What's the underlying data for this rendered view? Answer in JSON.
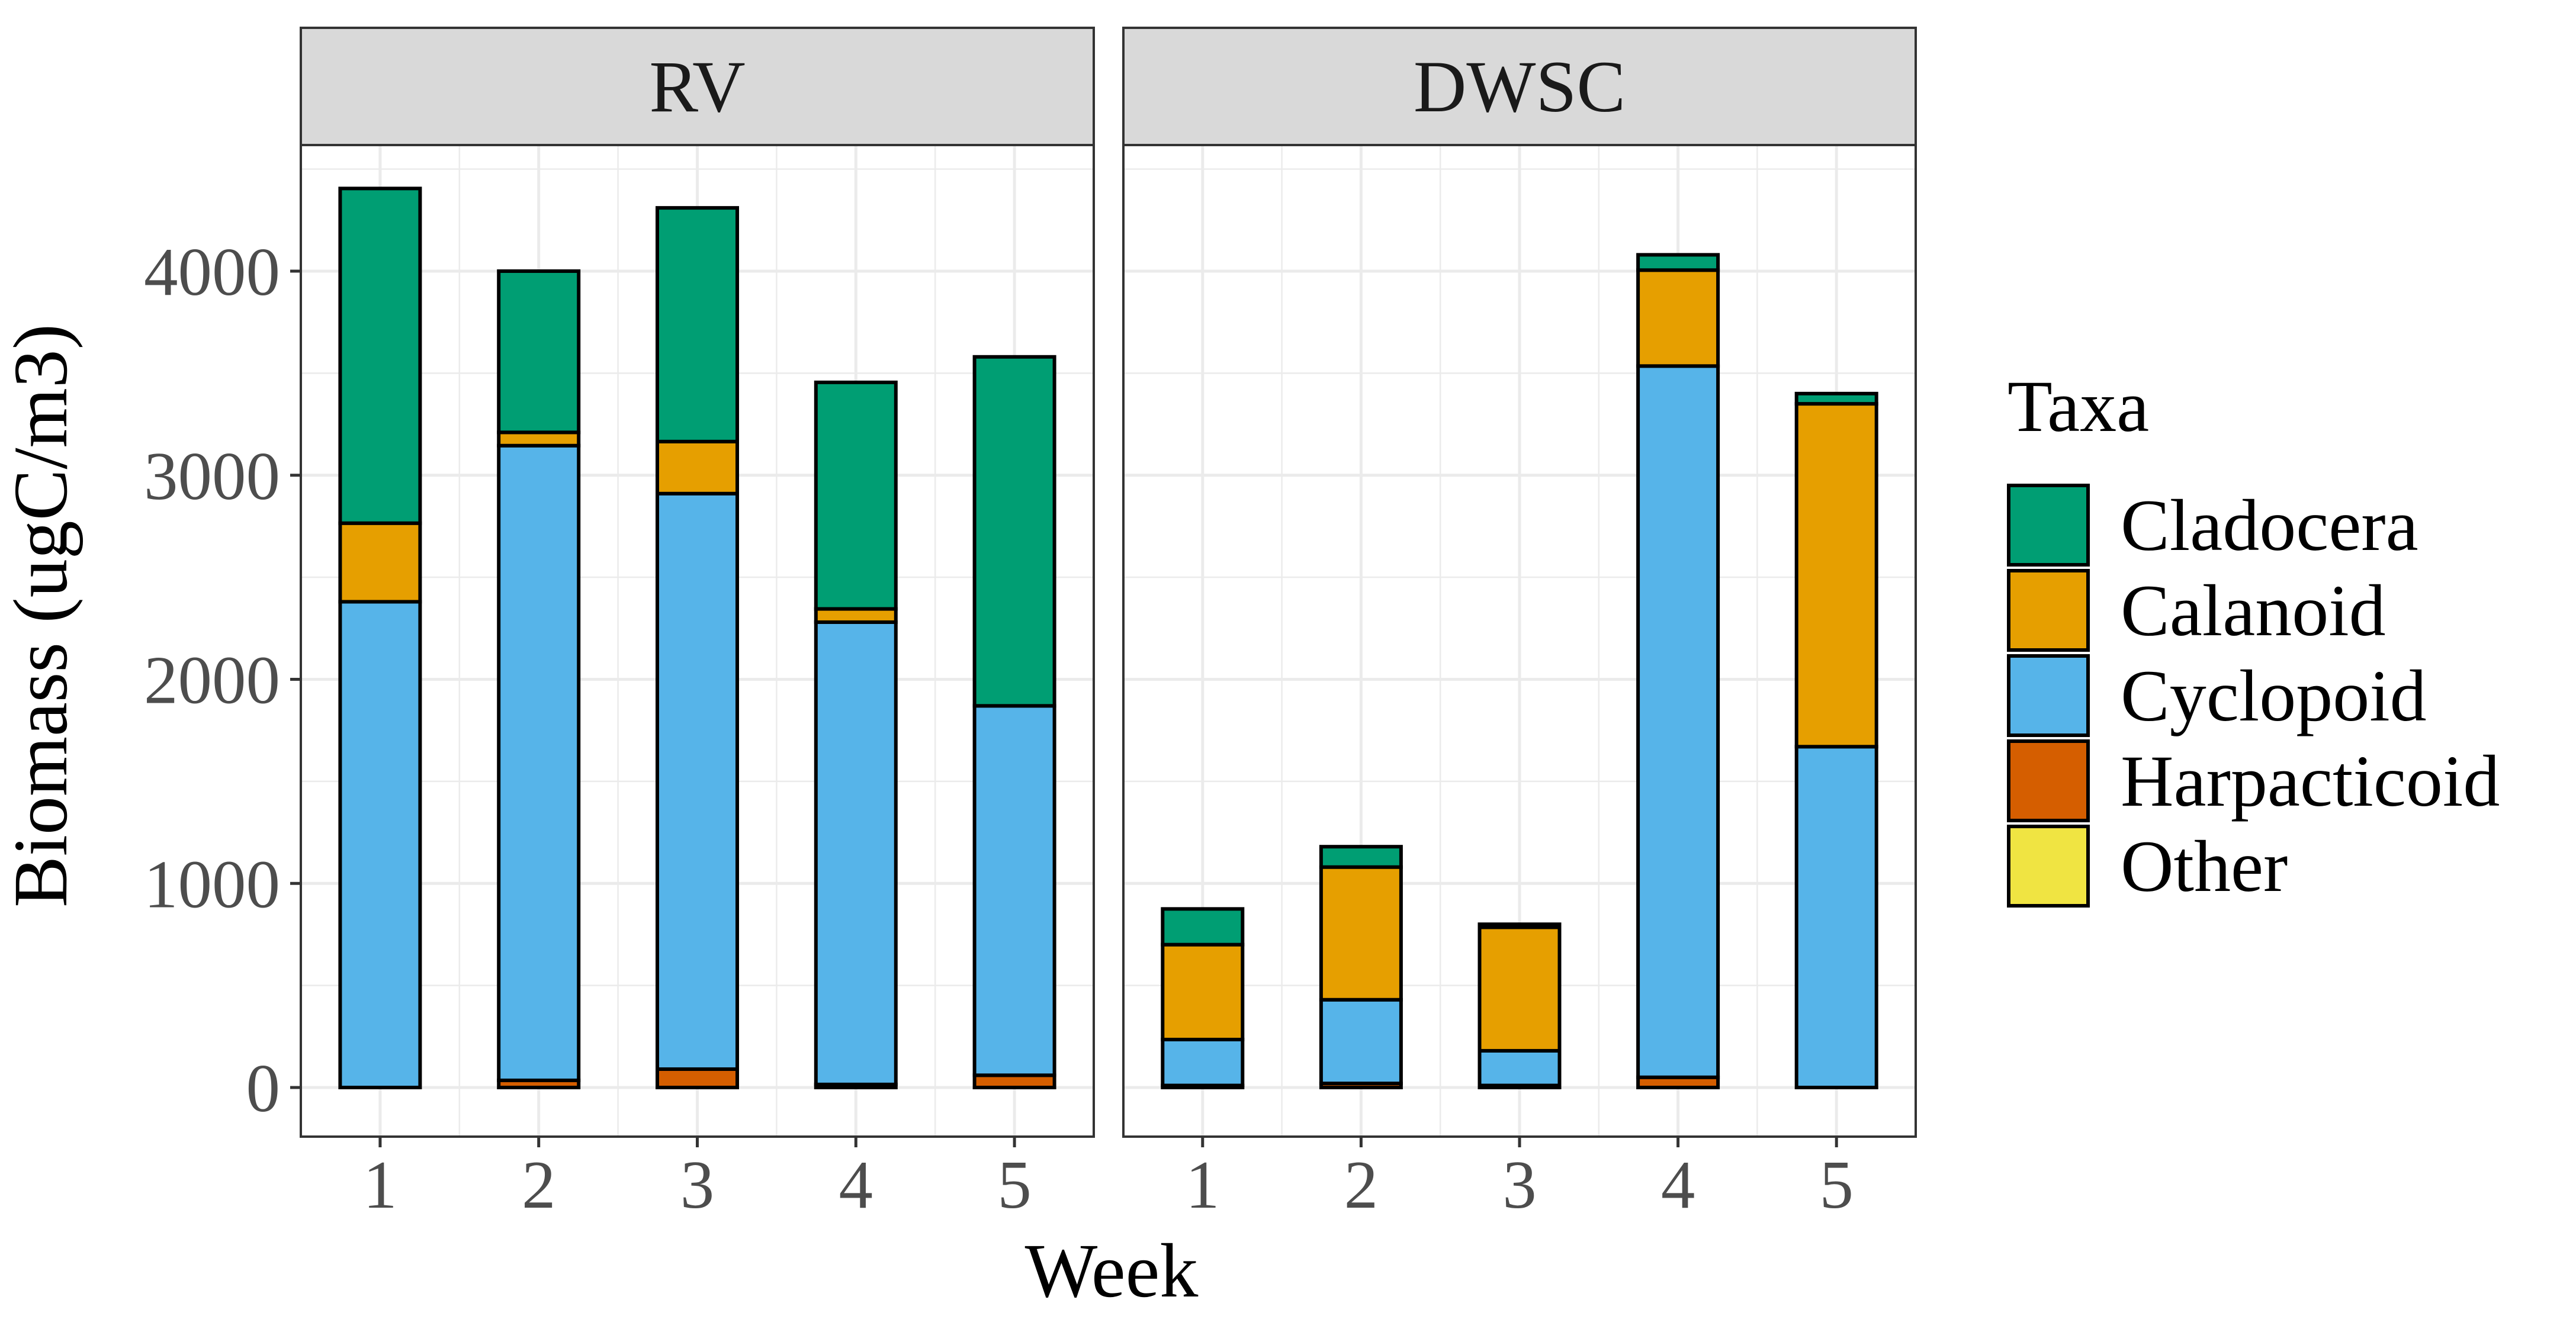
{
  "chart_data": {
    "type": "bar",
    "stacked": true,
    "facets": [
      "RV",
      "DWSC"
    ],
    "categories": [
      "1",
      "2",
      "3",
      "4",
      "5"
    ],
    "xlabel": "Week",
    "ylabel": "Biomass (ugC/m3)",
    "ylim": [
      -215,
      4600
    ],
    "yticks": [
      0,
      1000,
      2000,
      3000,
      4000
    ],
    "grid": true,
    "legend": {
      "title": "Taxa",
      "position": "right",
      "entries": [
        "Cladocera",
        "Calanoid",
        "Cyclopoid",
        "Harpacticoid",
        "Other"
      ]
    },
    "series": [
      {
        "name": "Other",
        "color": "#F0E442",
        "values": {
          "RV": [
            0,
            0,
            0,
            0,
            0
          ],
          "DWSC": [
            0,
            0,
            0,
            0,
            0
          ]
        }
      },
      {
        "name": "Harpacticoid",
        "color": "#D55E00",
        "values": {
          "RV": [
            0,
            35,
            90,
            15,
            60
          ],
          "DWSC": [
            10,
            20,
            10,
            50,
            0
          ]
        }
      },
      {
        "name": "Cyclopoid",
        "color": "#56B4E9",
        "values": {
          "RV": [
            2380,
            3110,
            2820,
            2265,
            1810
          ],
          "DWSC": [
            225,
            410,
            170,
            3485,
            1670
          ]
        }
      },
      {
        "name": "Calanoid",
        "color": "#E69F00",
        "values": {
          "RV": [
            385,
            65,
            255,
            65,
            0
          ],
          "DWSC": [
            465,
            650,
            605,
            470,
            1680
          ]
        }
      },
      {
        "name": "Cladocera",
        "color": "#009E73",
        "values": {
          "RV": [
            1640,
            790,
            1145,
            1110,
            1710
          ],
          "DWSC": [
            175,
            100,
            15,
            75,
            50
          ]
        }
      }
    ]
  }
}
